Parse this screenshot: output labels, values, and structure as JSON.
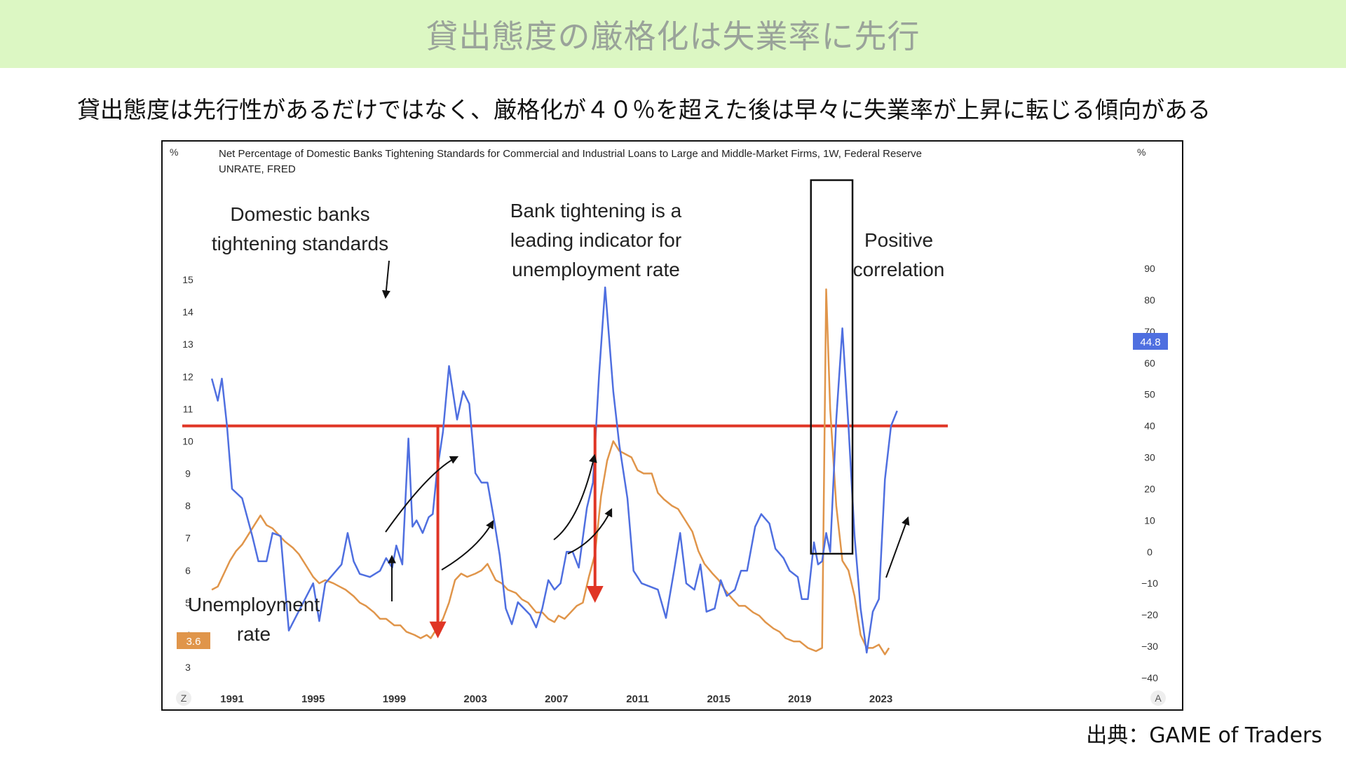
{
  "header": {
    "title": "貸出態度の厳格化は失業率に先行",
    "subtitle": "貸出態度は先行性があるだけではなく、厳格化が４０％を超えた後は早々に失業率が上昇に転じる傾向がある"
  },
  "source": "出典：GAME of Traders",
  "colors": {
    "banner": "#dcf7c3",
    "tightening": "#4f6fe0",
    "unemployment": "#e0954a",
    "threshold": "#e03525",
    "arrow_red": "#e03525"
  },
  "chart_data": {
    "type": "line",
    "header_line1": "Net Percentage of Domestic Banks Tightening Standards for Commercial and Industrial Loans to Large and Middle-Market Firms, 1W, Federal Reserve",
    "header_line2": "UNRATE, FRED",
    "left_axis": {
      "unit": "%",
      "ticks": [
        "3",
        "4",
        "5",
        "6",
        "7",
        "8",
        "9",
        "10",
        "11",
        "12",
        "13",
        "14",
        "15"
      ],
      "range": [
        3,
        15
      ]
    },
    "right_axis": {
      "unit": "%",
      "ticks": [
        "−40",
        "−30",
        "−20",
        "−10",
        "0",
        "10",
        "20",
        "30",
        "40",
        "50",
        "60",
        "70",
        "80",
        "90"
      ],
      "range": [
        -40,
        90
      ]
    },
    "x_ticks": [
      "1991",
      "1995",
      "1999",
      "2003",
      "2007",
      "2011",
      "2015",
      "2019",
      "2023"
    ],
    "x_range": [
      1988.2,
      2026.3
    ],
    "corner_left": "Z",
    "corner_right": "A",
    "last_value_tightening": "44.8",
    "last_value_unemployment": "3.6",
    "threshold": 40,
    "annotations": {
      "tightening_label": [
        "Domestic banks",
        "tightening standards"
      ],
      "leading_label": [
        "Bank tightening is a",
        "leading indicator for",
        "unemployment rate"
      ],
      "correlation_label": [
        "Positive",
        "correlation"
      ],
      "unemployment_label": [
        "Unemployment",
        "rate"
      ]
    },
    "series": [
      {
        "key": "tightening",
        "axis": "right",
        "points": [
          [
            1990.0,
            55
          ],
          [
            1990.3,
            48
          ],
          [
            1990.5,
            55
          ],
          [
            1990.75,
            40
          ],
          [
            1991.0,
            20
          ],
          [
            1991.5,
            17
          ],
          [
            1992.0,
            5
          ],
          [
            1992.3,
            -3
          ],
          [
            1992.7,
            -3
          ],
          [
            1993.0,
            6
          ],
          [
            1993.4,
            5
          ],
          [
            1993.8,
            -25
          ],
          [
            1994.2,
            -20
          ],
          [
            1994.6,
            -15
          ],
          [
            1995.0,
            -10
          ],
          [
            1995.3,
            -22
          ],
          [
            1995.6,
            -10
          ],
          [
            1996.0,
            -7
          ],
          [
            1996.4,
            -4
          ],
          [
            1996.7,
            6
          ],
          [
            1997.0,
            -3
          ],
          [
            1997.3,
            -7
          ],
          [
            1997.8,
            -8
          ],
          [
            1998.3,
            -6
          ],
          [
            1998.6,
            -2
          ],
          [
            1998.9,
            -5
          ],
          [
            1999.1,
            2
          ],
          [
            1999.4,
            -4
          ],
          [
            1999.7,
            36
          ],
          [
            1999.9,
            8
          ],
          [
            2000.1,
            10
          ],
          [
            2000.4,
            6
          ],
          [
            2000.7,
            11
          ],
          [
            2000.9,
            12
          ],
          [
            2001.1,
            25
          ],
          [
            2001.4,
            38
          ],
          [
            2001.7,
            59
          ],
          [
            2002.1,
            42
          ],
          [
            2002.4,
            51
          ],
          [
            2002.7,
            47
          ],
          [
            2003.0,
            25
          ],
          [
            2003.3,
            22
          ],
          [
            2003.6,
            22
          ],
          [
            2003.9,
            11
          ],
          [
            2004.2,
            -1
          ],
          [
            2004.5,
            -18
          ],
          [
            2004.8,
            -23
          ],
          [
            2005.1,
            -16
          ],
          [
            2005.4,
            -18
          ],
          [
            2005.7,
            -20
          ],
          [
            2006.0,
            -24
          ],
          [
            2006.3,
            -18
          ],
          [
            2006.6,
            -9
          ],
          [
            2006.9,
            -12
          ],
          [
            2007.2,
            -10
          ],
          [
            2007.5,
            0
          ],
          [
            2007.8,
            0
          ],
          [
            2008.1,
            -5
          ],
          [
            2008.5,
            14
          ],
          [
            2008.8,
            22
          ],
          [
            2009.1,
            56
          ],
          [
            2009.4,
            84
          ],
          [
            2009.8,
            51
          ],
          [
            2010.1,
            34
          ],
          [
            2010.5,
            17
          ],
          [
            2010.8,
            -6
          ],
          [
            2011.2,
            -10
          ],
          [
            2011.6,
            -11
          ],
          [
            2012.0,
            -12
          ],
          [
            2012.4,
            -21
          ],
          [
            2012.8,
            -6
          ],
          [
            2013.1,
            6
          ],
          [
            2013.4,
            -10
          ],
          [
            2013.8,
            -12
          ],
          [
            2014.1,
            -4
          ],
          [
            2014.4,
            -19
          ],
          [
            2014.8,
            -18
          ],
          [
            2015.1,
            -9
          ],
          [
            2015.4,
            -14
          ],
          [
            2015.8,
            -12
          ],
          [
            2016.1,
            -6
          ],
          [
            2016.4,
            -6
          ],
          [
            2016.8,
            8
          ],
          [
            2017.1,
            12
          ],
          [
            2017.5,
            9
          ],
          [
            2017.8,
            1
          ],
          [
            2018.2,
            -2
          ],
          [
            2018.5,
            -6
          ],
          [
            2018.9,
            -8
          ],
          [
            2019.1,
            -15
          ],
          [
            2019.4,
            -15
          ],
          [
            2019.7,
            3
          ],
          [
            2019.9,
            -4
          ],
          [
            2020.1,
            -3
          ],
          [
            2020.3,
            6
          ],
          [
            2020.5,
            0
          ],
          [
            2020.8,
            42
          ],
          [
            2021.1,
            71
          ],
          [
            2021.4,
            40
          ],
          [
            2021.7,
            5
          ],
          [
            2022.0,
            -18
          ],
          [
            2022.3,
            -32
          ],
          [
            2022.6,
            -19
          ],
          [
            2022.9,
            -15
          ],
          [
            2023.2,
            23
          ],
          [
            2023.5,
            40
          ],
          [
            2023.8,
            44.8
          ]
        ]
      },
      {
        "key": "unemployment",
        "axis": "left",
        "points": [
          [
            1990.0,
            5.4
          ],
          [
            1990.3,
            5.5
          ],
          [
            1990.6,
            5.9
          ],
          [
            1990.9,
            6.3
          ],
          [
            1991.2,
            6.6
          ],
          [
            1991.5,
            6.8
          ],
          [
            1991.8,
            7.1
          ],
          [
            1992.1,
            7.4
          ],
          [
            1992.4,
            7.7
          ],
          [
            1992.7,
            7.4
          ],
          [
            1993.0,
            7.3
          ],
          [
            1993.3,
            7.1
          ],
          [
            1993.6,
            6.9
          ],
          [
            1994.0,
            6.7
          ],
          [
            1994.3,
            6.5
          ],
          [
            1994.6,
            6.2
          ],
          [
            1995.0,
            5.8
          ],
          [
            1995.3,
            5.6
          ],
          [
            1995.6,
            5.7
          ],
          [
            1996.0,
            5.6
          ],
          [
            1996.3,
            5.5
          ],
          [
            1996.6,
            5.4
          ],
          [
            1997.0,
            5.2
          ],
          [
            1997.3,
            5.0
          ],
          [
            1997.6,
            4.9
          ],
          [
            1998.0,
            4.7
          ],
          [
            1998.3,
            4.5
          ],
          [
            1998.6,
            4.5
          ],
          [
            1999.0,
            4.3
          ],
          [
            1999.3,
            4.3
          ],
          [
            1999.6,
            4.1
          ],
          [
            2000.0,
            4.0
          ],
          [
            2000.3,
            3.9
          ],
          [
            2000.6,
            4.0
          ],
          [
            2000.8,
            3.9
          ],
          [
            2001.1,
            4.2
          ],
          [
            2001.4,
            4.5
          ],
          [
            2001.7,
            5.0
          ],
          [
            2002.0,
            5.7
          ],
          [
            2002.3,
            5.9
          ],
          [
            2002.6,
            5.8
          ],
          [
            2003.0,
            5.9
          ],
          [
            2003.3,
            6.0
          ],
          [
            2003.6,
            6.2
          ],
          [
            2004.0,
            5.7
          ],
          [
            2004.3,
            5.6
          ],
          [
            2004.6,
            5.4
          ],
          [
            2005.0,
            5.3
          ],
          [
            2005.3,
            5.1
          ],
          [
            2005.6,
            5.0
          ],
          [
            2006.0,
            4.7
          ],
          [
            2006.3,
            4.7
          ],
          [
            2006.6,
            4.5
          ],
          [
            2006.9,
            4.4
          ],
          [
            2007.1,
            4.6
          ],
          [
            2007.4,
            4.5
          ],
          [
            2007.7,
            4.7
          ],
          [
            2008.0,
            4.9
          ],
          [
            2008.3,
            5.0
          ],
          [
            2008.6,
            5.8
          ],
          [
            2008.9,
            6.5
          ],
          [
            2009.2,
            8.3
          ],
          [
            2009.5,
            9.4
          ],
          [
            2009.8,
            10.0
          ],
          [
            2010.1,
            9.7
          ],
          [
            2010.4,
            9.6
          ],
          [
            2010.7,
            9.5
          ],
          [
            2011.0,
            9.1
          ],
          [
            2011.3,
            9.0
          ],
          [
            2011.7,
            9.0
          ],
          [
            2012.0,
            8.4
          ],
          [
            2012.3,
            8.2
          ],
          [
            2012.7,
            8.0
          ],
          [
            2013.0,
            7.9
          ],
          [
            2013.3,
            7.6
          ],
          [
            2013.7,
            7.2
          ],
          [
            2014.0,
            6.6
          ],
          [
            2014.3,
            6.2
          ],
          [
            2014.7,
            5.9
          ],
          [
            2015.0,
            5.7
          ],
          [
            2015.3,
            5.4
          ],
          [
            2015.7,
            5.1
          ],
          [
            2016.0,
            4.9
          ],
          [
            2016.3,
            4.9
          ],
          [
            2016.7,
            4.7
          ],
          [
            2017.0,
            4.6
          ],
          [
            2017.3,
            4.4
          ],
          [
            2017.7,
            4.2
          ],
          [
            2018.0,
            4.1
          ],
          [
            2018.3,
            3.9
          ],
          [
            2018.7,
            3.8
          ],
          [
            2019.0,
            3.8
          ],
          [
            2019.4,
            3.6
          ],
          [
            2019.8,
            3.5
          ],
          [
            2020.1,
            3.6
          ],
          [
            2020.3,
            14.7
          ],
          [
            2020.5,
            11.0
          ],
          [
            2020.8,
            8.0
          ],
          [
            2021.1,
            6.3
          ],
          [
            2021.4,
            6.0
          ],
          [
            2021.7,
            5.2
          ],
          [
            2022.0,
            4.0
          ],
          [
            2022.3,
            3.6
          ],
          [
            2022.6,
            3.6
          ],
          [
            2022.9,
            3.7
          ],
          [
            2023.2,
            3.4
          ],
          [
            2023.4,
            3.6
          ]
        ]
      }
    ]
  }
}
